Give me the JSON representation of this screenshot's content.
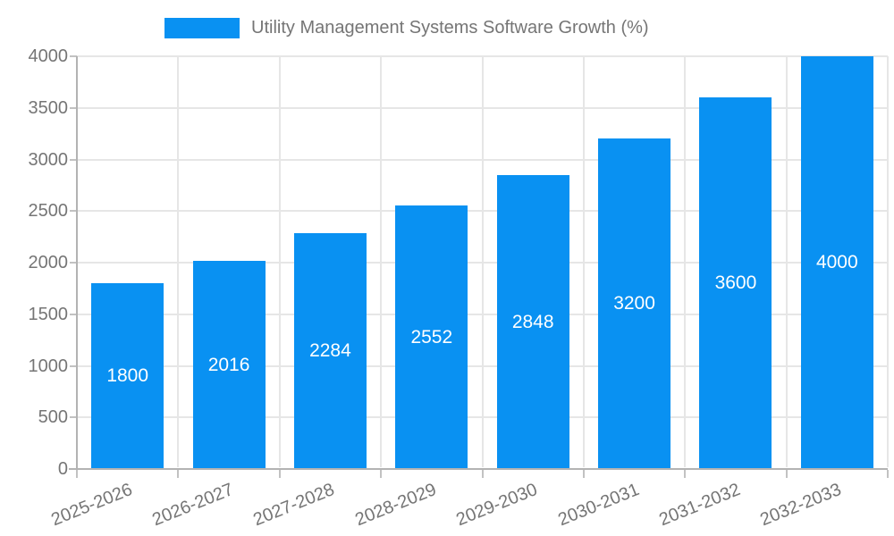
{
  "legend": {
    "label": "Utility Management Systems Software Growth (%)",
    "swatch_color": "#0991f2"
  },
  "colors": {
    "bar": "#0991f2",
    "axis_text": "#757575",
    "gridline": "#e6e6e6",
    "axis_line": "#b3b3b3",
    "tick": "#c2c2c2",
    "value_label": "#ffffff",
    "background": "#ffffff"
  },
  "chart_data": {
    "type": "bar",
    "title": "Utility Management Systems Software Growth (%)",
    "categories": [
      "2025-2026",
      "2026-2027",
      "2027-2028",
      "2028-2029",
      "2029-2030",
      "2030-2031",
      "2031-2032",
      "2032-2033"
    ],
    "values": [
      1800,
      2016,
      2284,
      2552,
      2848,
      3200,
      3600,
      4000
    ],
    "value_labels": [
      "1800",
      "2016",
      "2284",
      "2552",
      "2848",
      "3200",
      "3600",
      "4000"
    ],
    "xlabel": "",
    "ylabel": "",
    "ylim": [
      0,
      4000
    ],
    "ytick_step": 500,
    "yticks": [
      0,
      500,
      1000,
      1500,
      2000,
      2500,
      3000,
      3500,
      4000
    ],
    "ytick_labels": [
      "0",
      "500",
      "1000",
      "1500",
      "2000",
      "2500",
      "3000",
      "3500",
      "4000"
    ],
    "grid": true,
    "legend_position": "top-center",
    "bar_color": "#0991f2",
    "value_label_position": "inside-center"
  }
}
